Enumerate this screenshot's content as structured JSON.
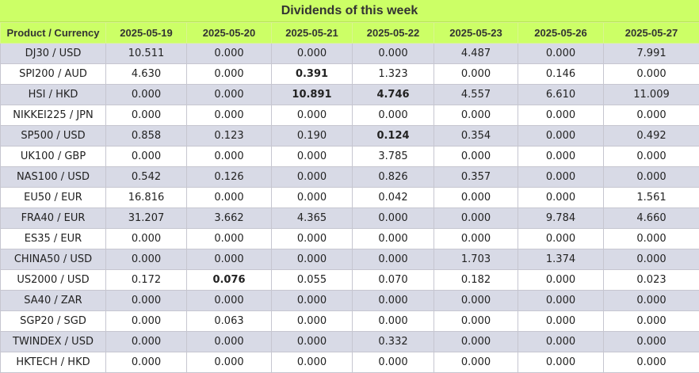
{
  "title": "Dividends of this week",
  "header": {
    "product": "Product / Currency",
    "dates": [
      "2025-05-19",
      "2025-05-20",
      "2025-05-21",
      "2025-05-22",
      "2025-05-23",
      "2025-05-26",
      "2025-05-27"
    ]
  },
  "rows": [
    {
      "product": "DJ30 / USD",
      "values": [
        "10.511",
        "0.000",
        "0.000",
        "0.000",
        "4.487",
        "0.000",
        "7.991"
      ],
      "bold": []
    },
    {
      "product": "SPI200 / AUD",
      "values": [
        "4.630",
        "0.000",
        "0.391",
        "1.323",
        "0.000",
        "0.146",
        "0.000"
      ],
      "bold": [
        2
      ]
    },
    {
      "product": "HSI / HKD",
      "values": [
        "0.000",
        "0.000",
        "10.891",
        "4.746",
        "4.557",
        "6.610",
        "11.009"
      ],
      "bold": [
        2,
        3
      ]
    },
    {
      "product": "NIKKEI225 / JPN",
      "values": [
        "0.000",
        "0.000",
        "0.000",
        "0.000",
        "0.000",
        "0.000",
        "0.000"
      ],
      "bold": []
    },
    {
      "product": "SP500 / USD",
      "values": [
        "0.858",
        "0.123",
        "0.190",
        "0.124",
        "0.354",
        "0.000",
        "0.492"
      ],
      "bold": [
        3
      ]
    },
    {
      "product": "UK100 / GBP",
      "values": [
        "0.000",
        "0.000",
        "0.000",
        "3.785",
        "0.000",
        "0.000",
        "0.000"
      ],
      "bold": []
    },
    {
      "product": "NAS100 / USD",
      "values": [
        "0.542",
        "0.126",
        "0.000",
        "0.826",
        "0.357",
        "0.000",
        "0.000"
      ],
      "bold": []
    },
    {
      "product": "EU50 / EUR",
      "values": [
        "16.816",
        "0.000",
        "0.000",
        "0.042",
        "0.000",
        "0.000",
        "1.561"
      ],
      "bold": []
    },
    {
      "product": "FRA40 / EUR",
      "values": [
        "31.207",
        "3.662",
        "4.365",
        "0.000",
        "0.000",
        "9.784",
        "4.660"
      ],
      "bold": []
    },
    {
      "product": "ES35 / EUR",
      "values": [
        "0.000",
        "0.000",
        "0.000",
        "0.000",
        "0.000",
        "0.000",
        "0.000"
      ],
      "bold": []
    },
    {
      "product": "CHINA50 / USD",
      "values": [
        "0.000",
        "0.000",
        "0.000",
        "0.000",
        "1.703",
        "1.374",
        "0.000"
      ],
      "bold": []
    },
    {
      "product": "US2000 / USD",
      "values": [
        "0.172",
        "0.076",
        "0.055",
        "0.070",
        "0.182",
        "0.000",
        "0.023"
      ],
      "bold": [
        1
      ]
    },
    {
      "product": "SA40 / ZAR",
      "values": [
        "0.000",
        "0.000",
        "0.000",
        "0.000",
        "0.000",
        "0.000",
        "0.000"
      ],
      "bold": []
    },
    {
      "product": "SGP20 / SGD",
      "values": [
        "0.000",
        "0.063",
        "0.000",
        "0.000",
        "0.000",
        "0.000",
        "0.000"
      ],
      "bold": []
    },
    {
      "product": "TWINDEX / USD",
      "values": [
        "0.000",
        "0.000",
        "0.000",
        "0.332",
        "0.000",
        "0.000",
        "0.000"
      ],
      "bold": []
    },
    {
      "product": "HKTECH / HKD",
      "values": [
        "0.000",
        "0.000",
        "0.000",
        "0.000",
        "0.000",
        "0.000",
        "0.000"
      ],
      "bold": []
    }
  ]
}
